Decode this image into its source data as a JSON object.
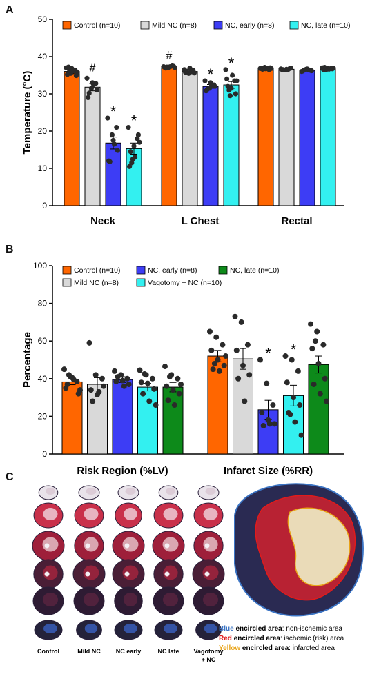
{
  "panels": {
    "a": "A",
    "b": "B",
    "c": "C"
  },
  "colors": {
    "control": "#ff6600",
    "mild": "#d9d9d9",
    "early": "#3d3df5",
    "late_a": "#33f0f0",
    "vagotomy": "#33f0f0",
    "late_b": "#0d8a1a",
    "blue_text": "#3b74c4",
    "red_text": "#e11b1b",
    "yellow_text": "#e8a317"
  },
  "chart_data": [
    {
      "type": "bar",
      "ylabel": "Temperature (°C)",
      "ylim": [
        0,
        50
      ],
      "yticks": [
        0,
        10,
        20,
        30,
        40,
        50
      ],
      "categories": [
        "Neck",
        "L Chest",
        "Rectal"
      ],
      "legend_position": "top",
      "series": [
        {
          "name": "Control (n=10)",
          "color_key": "control",
          "values": [
            36.0,
            37.2,
            36.8
          ],
          "errors": [
            0.6,
            0.2,
            0.2
          ]
        },
        {
          "name": "Mild NC (n=8)",
          "color_key": "mild",
          "values": [
            31.8,
            36.0,
            36.6
          ],
          "errors": [
            1.0,
            0.4,
            0.2
          ]
        },
        {
          "name": "NC, early (n=8)",
          "color_key": "early",
          "values": [
            16.8,
            32.0,
            36.3
          ],
          "errors": [
            1.6,
            0.5,
            0.2
          ]
        },
        {
          "name": "NC, late (n=10)",
          "color_key": "late_a",
          "values": [
            15.3,
            32.4,
            36.7
          ],
          "errors": [
            1.5,
            0.9,
            0.2
          ]
        }
      ],
      "points": [
        [
          [
            37.0,
            35.5,
            36.4,
            35.2,
            36.8,
            34.9,
            37.2,
            36.1,
            35.7,
            36.3
          ],
          [
            37.3,
            37.0,
            37.5,
            37.1,
            37.2,
            37.4,
            36.9,
            37.3,
            37.1,
            37.2
          ],
          [
            36.8,
            37.1,
            36.5,
            36.9,
            36.7,
            37.0,
            36.6,
            36.9,
            36.8,
            36.7
          ]
        ],
        [
          [
            34.2,
            31.5,
            32.8,
            29.0,
            33.0,
            31.0,
            30.2,
            32.5
          ],
          [
            36.5,
            35.5,
            36.3,
            35.8,
            36.9,
            35.6,
            36.1,
            35.9
          ],
          [
            36.7,
            36.4,
            36.8,
            36.5,
            36.6,
            36.9,
            36.5,
            36.4
          ]
        ],
        [
          [
            23.5,
            19.0,
            21.0,
            12.0,
            17.5,
            14.8,
            11.8,
            16.5
          ],
          [
            33.5,
            31.5,
            32.4,
            30.8,
            33.0,
            32.0,
            31.2,
            32.3
          ],
          [
            36.0,
            36.6,
            36.3,
            36.1,
            36.7,
            36.2,
            36.4,
            36.5
          ]
        ],
        [
          [
            21.0,
            12.5,
            18.0,
            10.5,
            16.0,
            19.0,
            14.5,
            13.0,
            17.0,
            11.5
          ],
          [
            36.5,
            29.5,
            33.5,
            34.0,
            31.5,
            30.0,
            32.0,
            35.0,
            33.5,
            31.0
          ],
          [
            37.0,
            36.6,
            36.9,
            36.5,
            36.8,
            36.7,
            37.1,
            36.6,
            36.9,
            36.4
          ]
        ]
      ],
      "annotations": [
        {
          "text": "#",
          "category": 0,
          "series": 1
        },
        {
          "text": "*",
          "category": 0,
          "series": 2
        },
        {
          "text": "*",
          "category": 0,
          "series": 3
        },
        {
          "text": "#",
          "category": 1,
          "series": 0
        },
        {
          "text": "*",
          "category": 1,
          "series": 2
        },
        {
          "text": "*",
          "category": 1,
          "series": 3
        }
      ]
    },
    {
      "type": "bar",
      "ylabel": "Percentage",
      "ylim": [
        0,
        100
      ],
      "yticks": [
        0,
        20,
        40,
        60,
        80,
        100
      ],
      "categories": [
        "Risk Region (%LV)",
        "Infarct Size (%RR)"
      ],
      "legend_position": "top",
      "series": [
        {
          "name": "Control (n=10)",
          "color_key": "control",
          "values": [
            38.3,
            52.0
          ],
          "errors": [
            1.5,
            3.0
          ]
        },
        {
          "name": "Mild NC (n=8)",
          "color_key": "mild",
          "values": [
            37.0,
            50.5
          ],
          "errors": [
            3.5,
            5.5
          ]
        },
        {
          "name": "NC, early (n=8)",
          "color_key": "early",
          "values": [
            39.5,
            23.5
          ],
          "errors": [
            1.5,
            5.0
          ]
        },
        {
          "name": "Vagotomy + NC (n=10)",
          "color_key": "vagotomy",
          "values": [
            35.5,
            31.0
          ],
          "errors": [
            2.0,
            5.5
          ]
        },
        {
          "name": "NC, late (n=10)",
          "color_key": "late_b",
          "values": [
            35.5,
            47.5
          ],
          "errors": [
            2.5,
            4.5
          ]
        }
      ],
      "points": [
        [
          [
            45.0,
            41.0,
            38.5,
            35.0,
            40.5,
            32.0,
            37.0,
            39.5,
            34.0,
            42.0
          ],
          [
            65.0,
            62.0,
            58.0,
            55.0,
            50.0,
            47.0,
            45.0,
            44.0,
            52.0,
            48.0
          ]
        ],
        [
          [
            59.0,
            42.0,
            40.0,
            34.0,
            31.5,
            36.0,
            28.0,
            33.0
          ],
          [
            73.0,
            70.0,
            58.0,
            55.0,
            47.0,
            42.0,
            40.0,
            28.0
          ]
        ],
        [
          [
            44.0,
            42.0,
            40.0,
            38.5,
            39.0,
            37.0,
            41.0,
            36.0
          ],
          [
            50.0,
            37.5,
            26.0,
            22.0,
            18.0,
            16.0,
            15.0,
            16.0
          ]
        ],
        [
          [
            44.5,
            42.0,
            40.0,
            38.0,
            37.5,
            34.5,
            32.0,
            28.0,
            26.0,
            42.5
          ],
          [
            52.0,
            50.0,
            44.0,
            38.0,
            30.0,
            26.0,
            22.0,
            17.0,
            10.0,
            21.0
          ]
        ],
        [
          [
            46.5,
            42.0,
            40.0,
            36.0,
            34.0,
            32.0,
            28.5,
            26.0,
            37.0,
            41.0
          ],
          [
            69.0,
            65.0,
            58.0,
            56.0,
            48.0,
            40.0,
            37.0,
            32.0,
            28.0,
            60.0
          ]
        ]
      ],
      "annotations": [
        {
          "text": "*",
          "category": 1,
          "series": 2
        },
        {
          "text": "*",
          "category": 1,
          "series": 3
        }
      ]
    }
  ],
  "panel_c": {
    "columns": [
      "Control",
      "Mild NC",
      "NC early",
      "NC late",
      "Vagotomy\n+ NC"
    ],
    "column_line1": [
      "Control",
      "Mild NC",
      "NC early",
      "NC late",
      "Vagotomy"
    ],
    "column_line2": [
      "",
      "",
      "",
      "",
      "+ NC"
    ],
    "legend": [
      {
        "color_key": "blue_text",
        "word": "Blue",
        "bold_rest": " encircled area",
        "rest": ": non-ischemic area"
      },
      {
        "color_key": "red_text",
        "word": "Red",
        "bold_rest": " encircled area",
        "rest": ": ischemic (risk) area"
      },
      {
        "color_key": "yellow_text",
        "word": "Yellow",
        "bold_rest": " encircled area",
        "rest": ": infarcted area"
      }
    ]
  }
}
